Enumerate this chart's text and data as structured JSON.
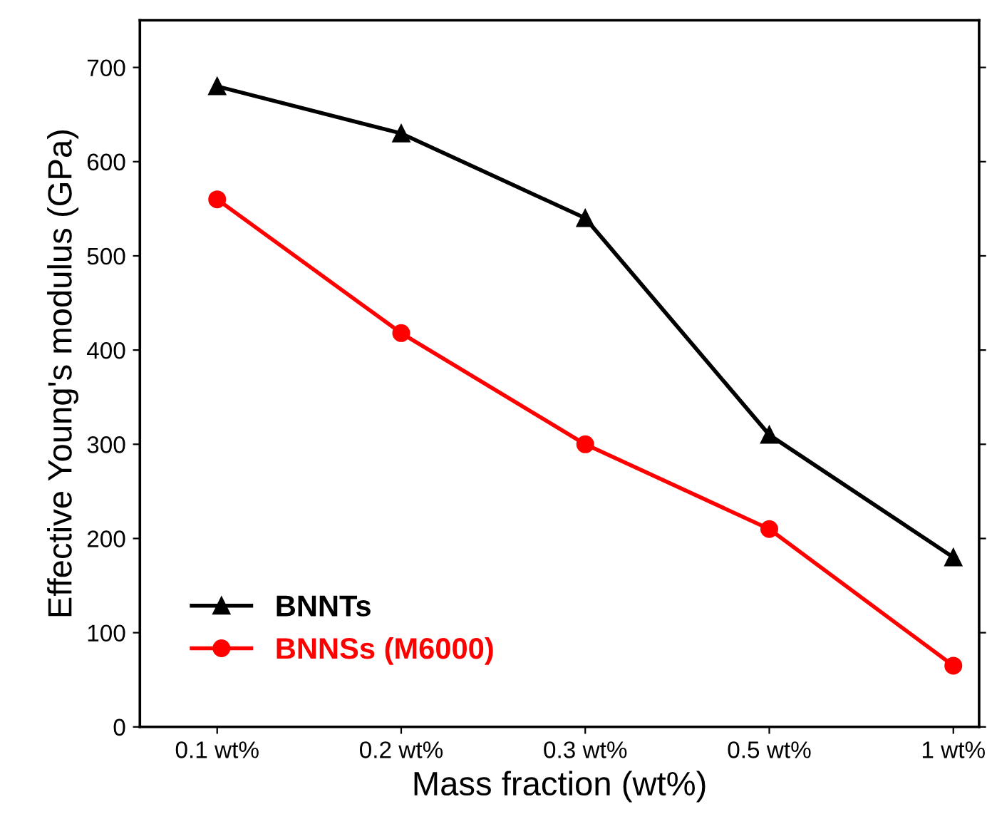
{
  "chart_data": {
    "type": "line",
    "xlabel": "Mass fraction (wt%)",
    "ylabel": "Effective Young's modulus (GPa)",
    "categories": [
      "0.1 wt%",
      "0.2 wt%",
      "0.3 wt%",
      "0.5 wt%",
      "1 wt%"
    ],
    "series": [
      {
        "name": "BNNTs",
        "color": "#000000",
        "marker": "triangle",
        "values": [
          680,
          630,
          540,
          310,
          180
        ]
      },
      {
        "name": "BNNSs (M6000)",
        "color": "#ff0000",
        "marker": "circle",
        "values": [
          560,
          418,
          300,
          210,
          65
        ]
      }
    ],
    "ylim": [
      0,
      750
    ],
    "yticks": [
      0,
      100,
      200,
      300,
      400,
      500,
      600,
      700
    ],
    "grid": false,
    "legend": "bottom left",
    "line_style": "solid"
  }
}
